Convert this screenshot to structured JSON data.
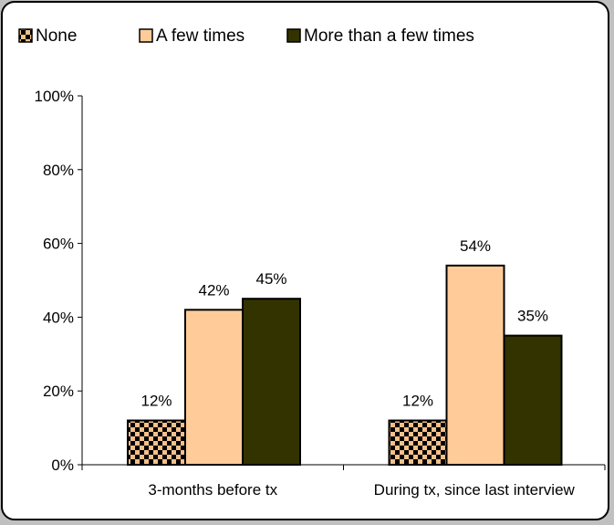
{
  "chart_data": {
    "type": "bar",
    "categories": [
      "3-months before tx",
      "During tx, since last interview"
    ],
    "series": [
      {
        "name": "None",
        "values": [
          12,
          12
        ],
        "labels": [
          "12%",
          "12%"
        ],
        "color": "#f5c08a",
        "pattern": "checkerboard"
      },
      {
        "name": "A few times",
        "values": [
          42,
          54
        ],
        "labels": [
          "42%",
          "54%"
        ],
        "color": "#ffcc99"
      },
      {
        "name": "More than a few times",
        "values": [
          45,
          35
        ],
        "labels": [
          "45%",
          "35%"
        ],
        "color": "#333300"
      }
    ],
    "ylim": [
      0,
      100
    ],
    "yticks": [
      "0%",
      "20%",
      "40%",
      "60%",
      "80%",
      "100%"
    ],
    "legend_position": "top",
    "grid": false
  }
}
